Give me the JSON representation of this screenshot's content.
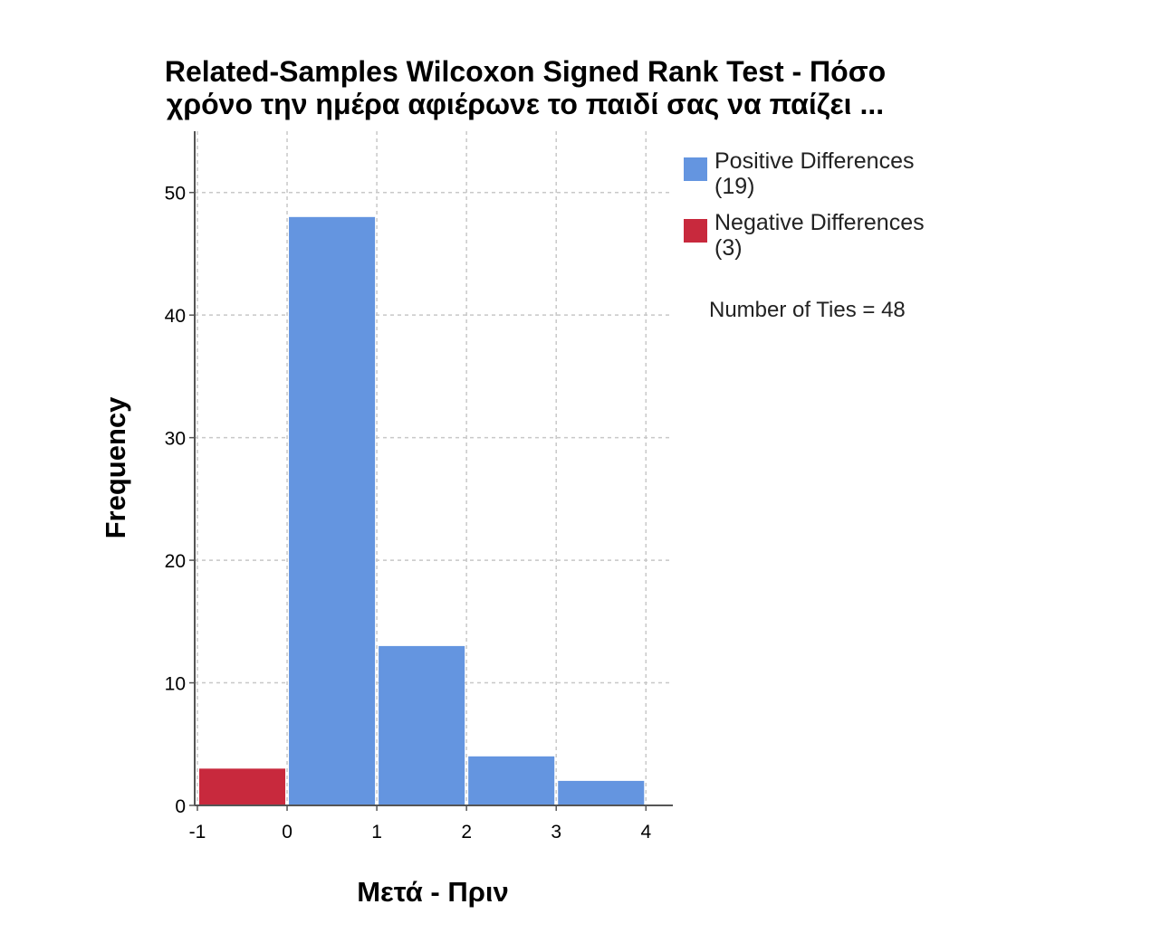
{
  "chart_data": {
    "type": "bar",
    "title": [
      "Related-Samples Wilcoxon Signed Rank Test - Πόσο",
      "χρόνο την ημέρα αφιέρωνε το παιδί σας να παίζει ..."
    ],
    "xlabel": "Μετά - Πριν",
    "ylabel": "Frequency",
    "xlim": [
      -1.03,
      4.3
    ],
    "ylim": [
      0,
      55
    ],
    "x_ticks": [
      "-1",
      "0",
      "1",
      "2",
      "3",
      "4"
    ],
    "x_tick_values": [
      -1,
      0,
      1,
      2,
      3,
      4
    ],
    "y_ticks": [
      "0",
      "10",
      "20",
      "30",
      "40",
      "50"
    ],
    "y_tick_values": [
      0,
      10,
      20,
      30,
      40,
      50
    ],
    "grid": true,
    "legend_placement": "right",
    "series": [
      {
        "name": "Positive Differences",
        "count_label": "(19)",
        "color": "#6495e0",
        "bins": [
          {
            "x0": 0,
            "x1": 1,
            "value": 48
          },
          {
            "x0": 1,
            "x1": 2,
            "value": 13
          },
          {
            "x0": 2,
            "x1": 3,
            "value": 4
          },
          {
            "x0": 3,
            "x1": 4,
            "value": 2
          }
        ]
      },
      {
        "name": "Negative Differences",
        "count_label": "(3)",
        "color": "#c8293d",
        "bins": [
          {
            "x0": -1,
            "x1": 0,
            "value": 3
          }
        ]
      }
    ],
    "note": "Number of Ties = 48"
  }
}
